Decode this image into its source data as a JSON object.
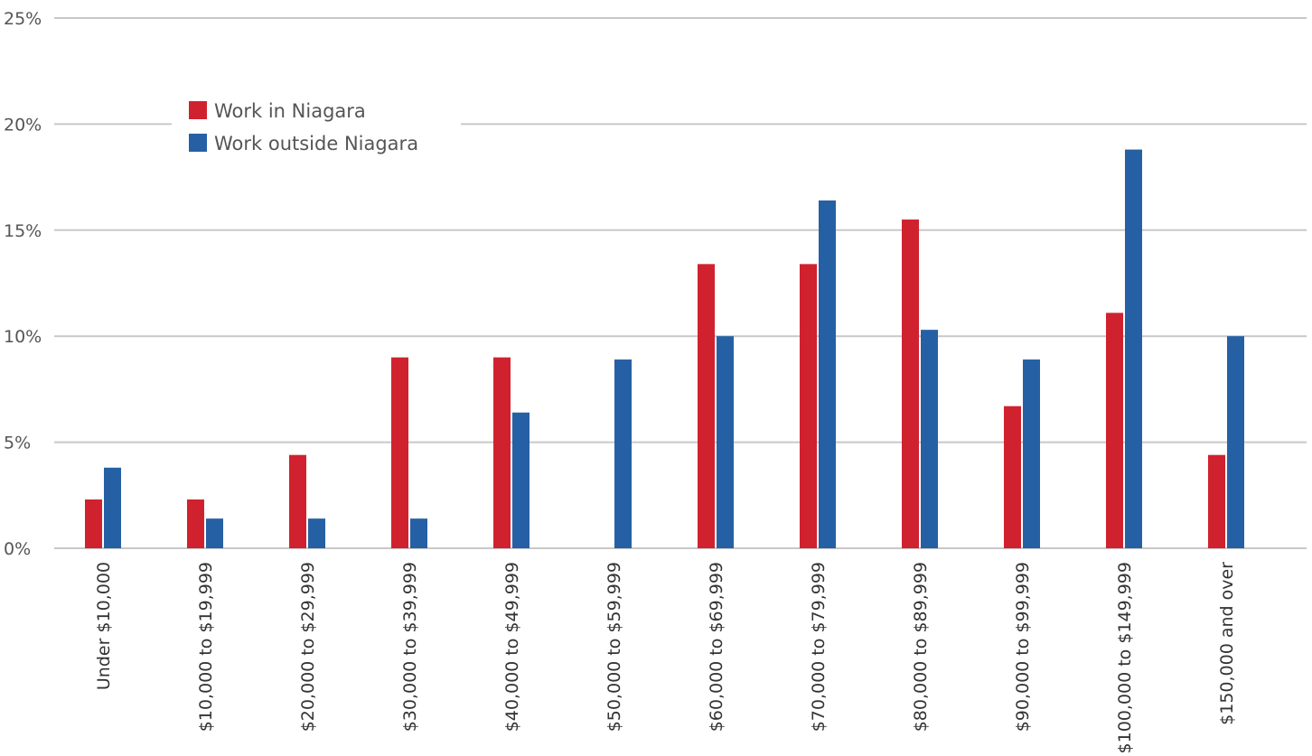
{
  "chart_data": {
    "type": "bar",
    "categories": [
      "Under $10,000",
      "$10,000 to $19,999",
      "$20,000 to $29,999",
      "$30,000 to $39,999",
      "$40,000 to $49,999",
      "$50,000 to $59,999",
      "$60,000 to $69,999",
      "$70,000 to $79,999",
      "$80,000 to $89,999",
      "$90,000 to $99,999",
      "$100,000 to $149,999",
      "$150,000 and over"
    ],
    "series": [
      {
        "name": "Work in Niagara",
        "color": "#d0222e",
        "values": [
          2.3,
          2.3,
          4.4,
          9.0,
          9.0,
          0.0,
          13.4,
          13.4,
          15.5,
          6.7,
          11.1,
          4.4
        ]
      },
      {
        "name": "Work outside Niagara",
        "color": "#2660a4",
        "values": [
          3.8,
          1.4,
          1.4,
          1.4,
          6.4,
          8.9,
          10.0,
          16.4,
          10.3,
          8.9,
          18.8,
          10.0
        ]
      }
    ],
    "yticks": [
      "0%",
      "5%",
      "10%",
      "15%",
      "20%",
      "25%"
    ],
    "ylim": [
      0,
      25
    ],
    "grid": true,
    "legend_position": "top-left",
    "title": "",
    "xlabel": "",
    "ylabel": ""
  }
}
